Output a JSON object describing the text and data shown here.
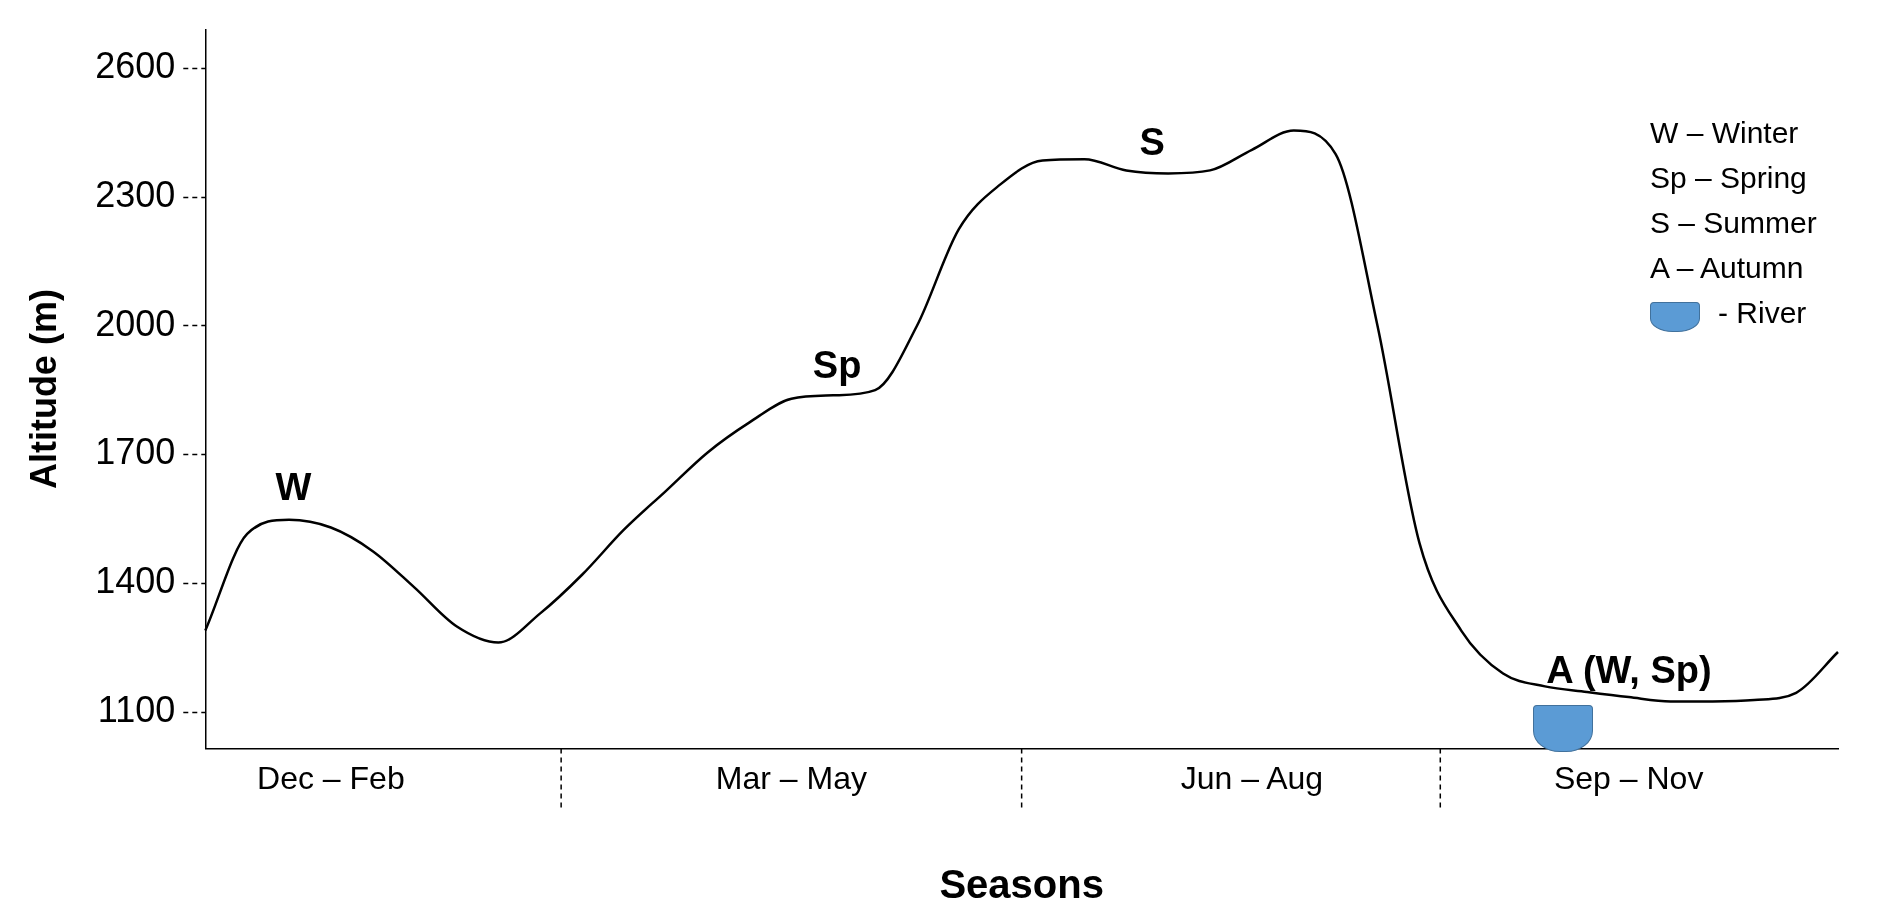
{
  "chart_data": {
    "type": "line",
    "xlabel": "Seasons",
    "ylabel": "Altitude (m)",
    "categories": [
      null,
      null,
      null,
      "Dec – Feb",
      null,
      null,
      null,
      null,
      null,
      null,
      null,
      null,
      null,
      null,
      "Mar – May",
      null,
      null,
      null,
      null,
      null,
      null,
      null,
      null,
      null,
      null,
      "Jun – Aug",
      null,
      null,
      null,
      null,
      null,
      null,
      null,
      null,
      "Sep – Nov",
      null,
      null,
      null,
      null,
      null
    ],
    "series": [
      {
        "color": "#000000",
        "values": [
          1290,
          1515,
          1548,
          1530,
          1475,
          1390,
          1300,
          1262,
          1330,
          1420,
          1525,
          1615,
          1705,
          1775,
          1830,
          1838,
          1850,
          2000,
          2225,
          2330,
          2385,
          2388,
          2362,
          2355,
          2362,
          2410,
          2455,
          2400,
          2000,
          1495,
          1290,
          1190,
          1160,
          1147,
          1135,
          1125,
          1125,
          1128,
          1145,
          1240
        ]
      }
    ],
    "ylim": [
      1015,
      2690
    ],
    "yticks": [
      1100,
      1400,
      1700,
      2000,
      2300,
      2600
    ],
    "grid": false,
    "legend": false,
    "marker": "none",
    "line_style": "solid",
    "annotations": [
      {
        "text": "W",
        "y": 1550
      },
      {
        "text": "Sp",
        "y": 1835
      },
      {
        "text": "S",
        "y": 2355
      },
      {
        "text": "A (W, Sp)",
        "y": 1125
      },
      "W – Winter",
      "Sp – Spring",
      "S – Summer",
      "A – Autumn",
      "- River"
    ]
  }
}
